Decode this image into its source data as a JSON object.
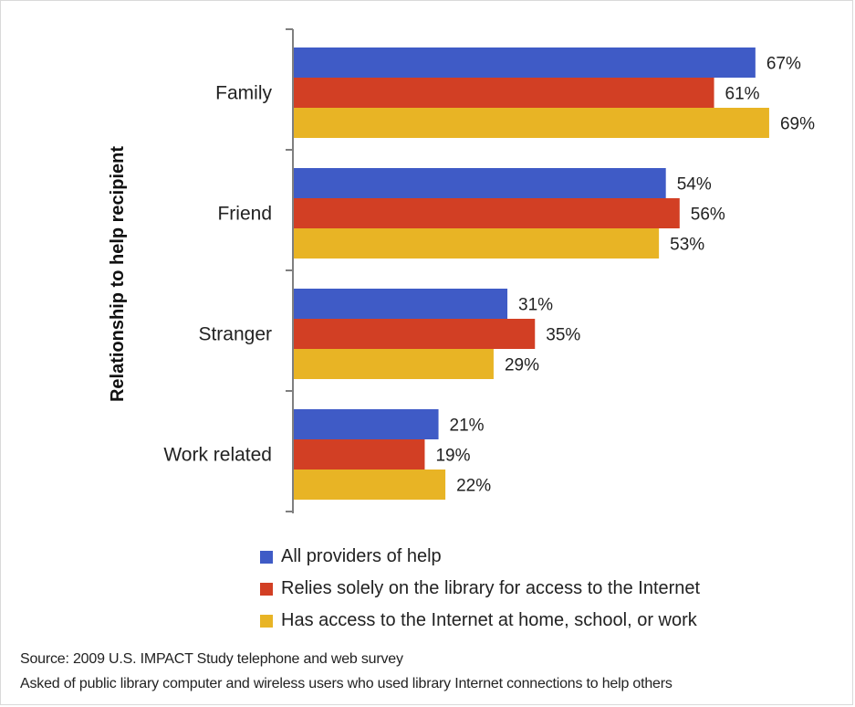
{
  "chart_data": {
    "type": "bar",
    "orientation": "horizontal",
    "categories": [
      "Family",
      "Friend",
      "Stranger",
      "Work related"
    ],
    "series": [
      {
        "name": "All providers of help",
        "color": "#3f5bc6",
        "values": [
          67,
          54,
          31,
          21
        ],
        "labels": [
          "67%",
          "54%",
          "31%",
          "21%"
        ]
      },
      {
        "name": "Relies solely on the library for access to the Internet",
        "color": "#d23f24",
        "values": [
          61,
          56,
          35,
          19
        ],
        "labels": [
          "61%",
          "56%",
          "35%",
          "19%"
        ]
      },
      {
        "name": "Has access to the Internet at home, school, or work",
        "color": "#e8b425",
        "values": [
          69,
          53,
          29,
          22
        ],
        "labels": [
          "69%",
          "53%",
          "29%",
          "22%"
        ]
      }
    ],
    "ylabel": "Relationship to help recipient",
    "xlabel": "",
    "xlim": [
      0,
      75
    ],
    "grid": false,
    "legend_position": "bottom"
  },
  "notes": {
    "source": "Source: 2009 U.S. IMPACT Study telephone and web survey",
    "asked": "Asked of public library computer and wireless users who used library Internet connections to help others"
  }
}
